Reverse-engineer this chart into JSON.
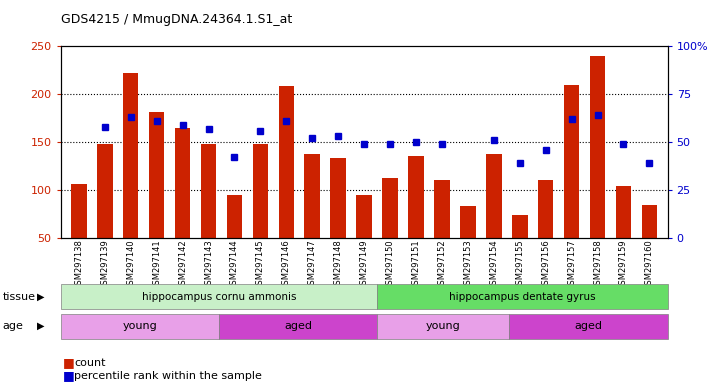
{
  "title": "GDS4215 / MmugDNA.24364.1.S1_at",
  "samples": [
    "GSM297138",
    "GSM297139",
    "GSM297140",
    "GSM297141",
    "GSM297142",
    "GSM297143",
    "GSM297144",
    "GSM297145",
    "GSM297146",
    "GSM297147",
    "GSM297148",
    "GSM297149",
    "GSM297150",
    "GSM297151",
    "GSM297152",
    "GSM297153",
    "GSM297154",
    "GSM297155",
    "GSM297156",
    "GSM297157",
    "GSM297158",
    "GSM297159",
    "GSM297160"
  ],
  "counts": [
    106,
    148,
    222,
    181,
    165,
    148,
    95,
    148,
    208,
    138,
    133,
    95,
    113,
    136,
    111,
    83,
    138,
    74,
    110,
    209,
    240,
    104,
    84
  ],
  "percentiles": [
    null,
    58,
    63,
    61,
    59,
    57,
    42,
    56,
    61,
    52,
    53,
    49,
    49,
    50,
    49,
    null,
    51,
    39,
    46,
    62,
    64,
    49,
    39
  ],
  "tissue_groups": [
    {
      "label": "hippocampus cornu ammonis",
      "start": 0,
      "end": 12,
      "color": "#C8F0C8"
    },
    {
      "label": "hippocampus dentate gyrus",
      "start": 12,
      "end": 23,
      "color": "#66DD66"
    }
  ],
  "age_groups": [
    {
      "label": "young",
      "start": 0,
      "end": 6,
      "color": "#E8A0E8"
    },
    {
      "label": "aged",
      "start": 6,
      "end": 12,
      "color": "#CC44CC"
    },
    {
      "label": "young",
      "start": 12,
      "end": 17,
      "color": "#E8A0E8"
    },
    {
      "label": "aged",
      "start": 17,
      "end": 23,
      "color": "#CC44CC"
    }
  ],
  "bar_color": "#CC2200",
  "dot_color": "#0000CC",
  "ylim_left": [
    50,
    250
  ],
  "ylim_right": [
    0,
    100
  ],
  "yticks_left": [
    50,
    100,
    150,
    200,
    250
  ],
  "yticks_right": [
    0,
    25,
    50,
    75,
    100
  ],
  "grid_values": [
    100,
    150,
    200
  ],
  "background_color": "#ffffff",
  "legend_count_label": "count",
  "legend_pct_label": "percentile rank within the sample",
  "tissue_label": "tissue",
  "age_label": "age"
}
